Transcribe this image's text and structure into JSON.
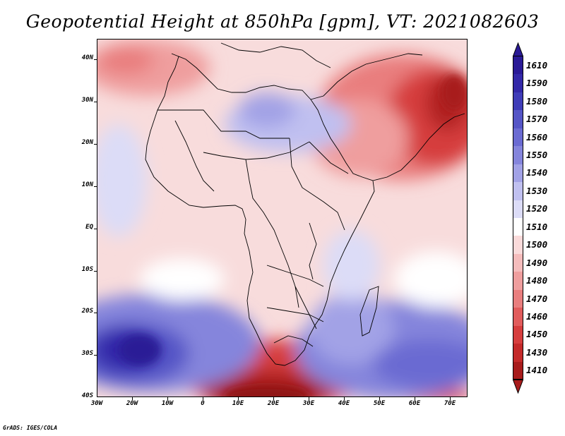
{
  "title": "Geopotential Height at 850hPa [gpm], VT: 2021082603",
  "footer": "GrADS: IGES/COLA",
  "map": {
    "variable": "Geopotential Height",
    "level": "850hPa",
    "units": "gpm",
    "valid_time": "2021082603",
    "lon_range": [
      -30,
      75
    ],
    "lat_range": [
      -40,
      45
    ],
    "lat_labels": [
      "40N",
      "30N",
      "20N",
      "10N",
      "EQ",
      "10S",
      "20S",
      "30S",
      "40S"
    ],
    "lon_labels": [
      "30W",
      "20W",
      "10W",
      "0",
      "10E",
      "20E",
      "30E",
      "40E",
      "50E",
      "60E",
      "70E"
    ]
  },
  "colorbar": {
    "labels": [
      "1610",
      "1590",
      "1580",
      "1570",
      "1560",
      "1550",
      "1540",
      "1530",
      "1520",
      "1510",
      "1500",
      "1490",
      "1480",
      "1470",
      "1460",
      "1450",
      "1430",
      "1410"
    ],
    "colors": [
      "#2a1a96",
      "#3328a8",
      "#3f3cb8",
      "#5555c6",
      "#6b6bd2",
      "#8585dc",
      "#a2a2e6",
      "#c0c0f0",
      "#dcdcf7",
      "#ffffff",
      "#fadada",
      "#f5bcbc",
      "#ef9e9e",
      "#e97e7e",
      "#e15c5c",
      "#d63e3e",
      "#c42a2a",
      "#a81c1c"
    ]
  }
}
